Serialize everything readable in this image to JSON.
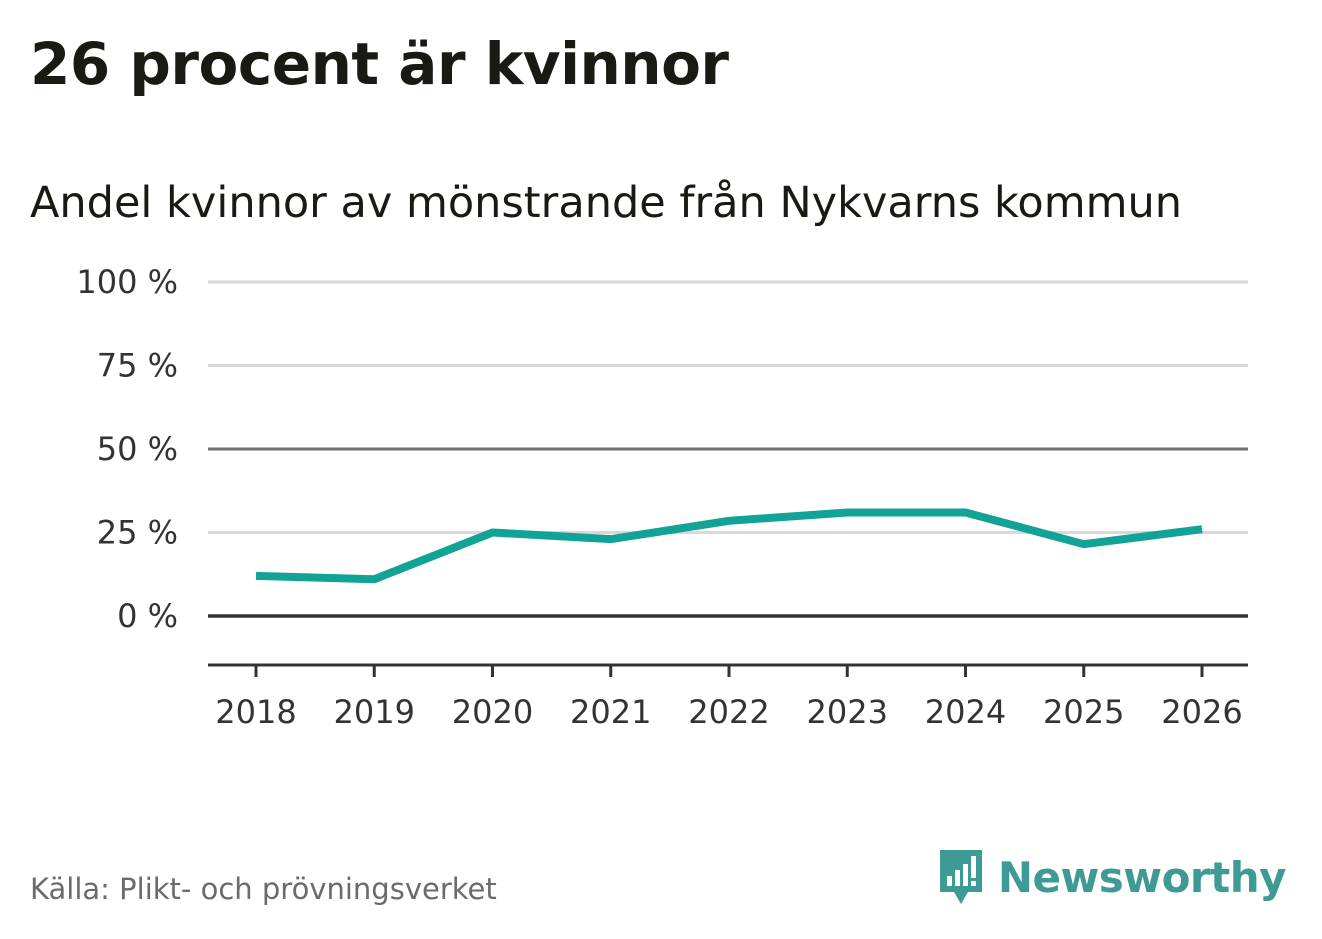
{
  "title": "26 procent är kvinnor",
  "subtitle": "Andel kvinnor av mönstrande från Nykvarns kommun",
  "source": "Källa: Plikt- och prövningsverket",
  "brand": {
    "name": "Newsworthy",
    "icon": "newsworthy-logo-icon",
    "color": "#3e9a95"
  },
  "colors": {
    "line": "#12a396",
    "grid": "#d9d9d9",
    "axis": "#333333",
    "midline": "#6e6e73"
  },
  "chart_data": {
    "type": "line",
    "title": "26 procent är kvinnor",
    "subtitle": "Andel kvinnor av mönstrande från Nykvarns kommun",
    "xlabel": "",
    "ylabel": "",
    "categories": [
      "2018",
      "2019",
      "2020",
      "2021",
      "2022",
      "2023",
      "2024",
      "2025",
      "2026"
    ],
    "series": [
      {
        "name": "Andel kvinnor",
        "values": [
          12,
          11,
          25,
          23,
          28.5,
          31,
          31,
          21.5,
          26
        ]
      }
    ],
    "yticks": [
      0,
      25,
      50,
      75,
      100
    ],
    "ytick_labels": [
      "0 %",
      "25 %",
      "50 %",
      "75 %",
      "100 %"
    ],
    "ylim": [
      -15,
      100
    ],
    "grid": true
  }
}
